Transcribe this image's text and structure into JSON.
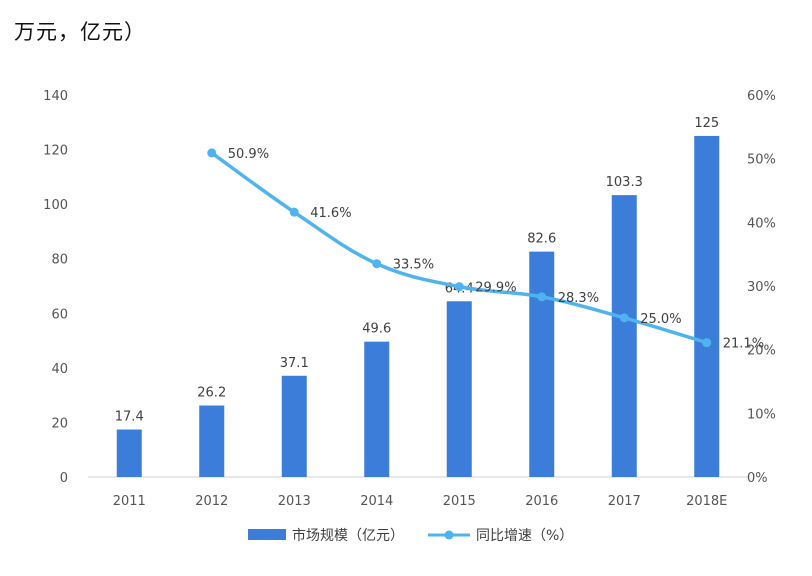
{
  "heading": "万元，亿元）",
  "chart_data": {
    "type": "bar",
    "categories": [
      "2011",
      "2012",
      "2013",
      "2014",
      "2015",
      "2016",
      "2017",
      "2018E"
    ],
    "y_ticks": [
      "0",
      "20",
      "40",
      "60",
      "80",
      "100",
      "120",
      "140"
    ],
    "y2_ticks": [
      "0%",
      "10%",
      "20%",
      "30%",
      "40%",
      "50%",
      "60%"
    ],
    "ylim": [
      0,
      140
    ],
    "y2lim": [
      0,
      60
    ],
    "series": [
      {
        "name": "市场规模（亿元）",
        "type": "bar",
        "axis": "left",
        "color": "#3b7dd8",
        "values": [
          17.4,
          26.2,
          37.1,
          49.6,
          64.4,
          82.6,
          103.3,
          125
        ],
        "labels": [
          "17.4",
          "26.2",
          "37.1",
          "49.6",
          "64.4",
          "82.6",
          "103.3",
          "125"
        ]
      },
      {
        "name": "同比增速（%）",
        "type": "line",
        "axis": "right",
        "color": "#4fb3f0",
        "values": [
          null,
          50.9,
          41.6,
          33.5,
          29.9,
          28.3,
          25.0,
          21.1
        ],
        "labels": [
          "",
          "50.9%",
          "41.6%",
          "33.5%",
          "29.9%",
          "28.3%",
          "25.0%",
          "21.1%"
        ]
      }
    ],
    "grid": false,
    "legend_position": "bottom"
  }
}
